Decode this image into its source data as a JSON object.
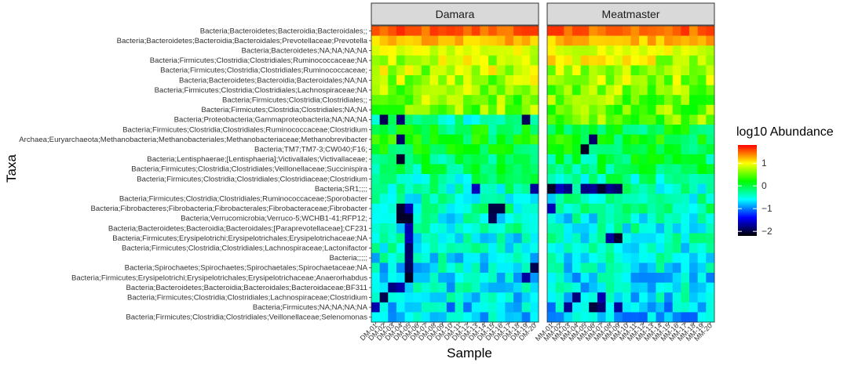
{
  "chart_data": {
    "type": "heatmap",
    "x_axis_label": "Sample",
    "y_axis_label": "Taxa",
    "legend": {
      "title": "log10 Abundance",
      "ticks": [
        1,
        0,
        -1,
        -2
      ],
      "tick_labels": [
        "1",
        "0",
        "−1",
        "−2"
      ],
      "range": [
        -2.2,
        1.8
      ],
      "colors": [
        "#000000",
        "#0000ff",
        "#00ffff",
        "#00ff00",
        "#ffff00",
        "#ff0000"
      ]
    },
    "facets": [
      {
        "label": "Damara",
        "samples": [
          "DM-01",
          "DM-02",
          "DM-03",
          "DM-04",
          "DM-05",
          "DM-06",
          "DM-07",
          "DM-08",
          "DM-09",
          "DM-10",
          "DM-11",
          "DM-12",
          "DM-13",
          "DM-14",
          "DM-15",
          "DM-16",
          "DM-17",
          "DM-18",
          "DM-19",
          "DM-20"
        ]
      },
      {
        "label": "Meatmaster",
        "samples": [
          "MM-01",
          "MM-02",
          "MM-03",
          "MM-04",
          "MM-05",
          "MM-06",
          "MM-07",
          "MM-08",
          "MM-09",
          "MM-10",
          "MM-11",
          "MM-12",
          "MM-13",
          "MM-14",
          "MM-15",
          "MM-16",
          "MM-17",
          "MM-18",
          "MM-19",
          "MM-20"
        ]
      }
    ],
    "taxa": [
      "Bacteria;Bacteroidetes;Bacteroidia;Bacteroidales;;",
      "Bacteria;Bacteroidetes;Bacteroidia;Bacteroidales;Prevotellaceae;Prevotella",
      "Bacteria;Bacteroidetes;NA;NA;NA;NA",
      "Bacteria;Firmicutes;Clostridia;Clostridiales;Ruminococcaceae;NA",
      "Bacteria;Firmicutes;Clostridia;Clostridiales;Ruminococcaceae;",
      "Bacteria;Bacteroidetes;Bacteroidia;Bacteroidales;NA;NA",
      "Bacteria;Firmicutes;Clostridia;Clostridiales;Lachnospiraceae;NA",
      "Bacteria;Firmicutes;Clostridia;Clostridiales;;",
      "Bacteria;Firmicutes;Clostridia;Clostridiales;NA;NA",
      "Bacteria;Proteobacteria;Gammaproteobacteria;NA;NA;NA",
      "Bacteria;Firmicutes;Clostridia;Clostridiales;Ruminococcaceae;Clostridium",
      "Archaea;Euryarchaeota;Methanobacteria;Methanobacteriales;Methanobacteriaceae;Methanobrevibacter",
      "Bacteria;TM7;TM7-3;CW040;F16;",
      "Bacteria;Lentisphaerae;[Lentisphaeria];Victivallales;Victivallaceae;",
      "Bacteria;Firmicutes;Clostridia;Clostridiales;Veillonellaceae;Succinispira",
      "Bacteria;Firmicutes;Clostridia;Clostridiales;Clostridiaceae;Clostridium",
      "Bacteria;SR1;;;;",
      "Bacteria;Firmicutes;Clostridia;Clostridiales;Ruminococcaceae;Sporobacter",
      "Bacteria;Fibrobacteres;Fibrobacteria;Fibrobacterales;Fibrobacteraceae;Fibrobacter",
      "Bacteria;Verrucomicrobia;Verruco-5;WCHB1-41;RFP12;",
      "Bacteria;Bacteroidetes;Bacteroidia;Bacteroidales;[Paraprevotellaceae];CF231",
      "Bacteria;Firmicutes;Erysipelotrichi;Erysipelotrichales;Erysipelotrichaceae;NA",
      "Bacteria;Firmicutes;Clostridia;Clostridiales;Lachnospiraceae;Lactonifactor",
      "Bacteria;;;;;",
      "Bacteria;Spirochaetes;Spirochaetes;Spirochaetales;Spirochaetaceae;NA",
      "Bacteria;Firmicutes;Erysipelotrichi;Erysipelotrichales;Erysipelotrichaceae;Anaerorhabdus",
      "Bacteria;Bacteroidetes;Bacteroidia;Bacteroidales;Bacteroidaceae;BF311",
      "Bacteria;Firmicutes;Clostridia;Clostridiales;Lachnospiraceae;Clostridium",
      "Bacteria;Firmicutes;NA;NA;NA;NA",
      "Bacteria;Firmicutes;Clostridia;Clostridiales;Veillonellaceae;Selenomonas"
    ],
    "row_base_values": [
      1.5,
      1.2,
      0.9,
      0.85,
      0.75,
      0.7,
      0.65,
      0.6,
      0.55,
      -0.3,
      0.0,
      0.1,
      0.05,
      -0.1,
      -0.15,
      -0.3,
      -0.35,
      -0.4,
      -0.3,
      -0.5,
      -0.45,
      -0.5,
      -0.5,
      -0.55,
      -0.6,
      -0.65,
      -0.6,
      -0.6,
      -0.75,
      -0.75
    ],
    "damara_low_cells": [
      [
        9,
        1
      ],
      [
        9,
        3
      ],
      [
        9,
        18
      ],
      [
        11,
        3
      ],
      [
        13,
        3
      ],
      [
        16,
        12
      ],
      [
        16,
        19
      ],
      [
        18,
        3
      ],
      [
        18,
        4
      ],
      [
        18,
        14
      ],
      [
        18,
        15
      ],
      [
        19,
        3
      ],
      [
        19,
        4
      ],
      [
        19,
        14
      ],
      [
        20,
        4
      ],
      [
        21,
        4
      ],
      [
        22,
        4
      ],
      [
        23,
        4
      ],
      [
        24,
        4
      ],
      [
        24,
        19
      ],
      [
        25,
        4
      ],
      [
        25,
        18
      ],
      [
        26,
        2
      ],
      [
        26,
        3
      ],
      [
        27,
        1
      ],
      [
        28,
        0
      ]
    ],
    "meatmaster_low_cells": [
      [
        16,
        0
      ],
      [
        16,
        1
      ],
      [
        16,
        2
      ],
      [
        16,
        4
      ],
      [
        16,
        5
      ],
      [
        16,
        6
      ],
      [
        16,
        7
      ],
      [
        16,
        8
      ],
      [
        18,
        0
      ],
      [
        21,
        7
      ],
      [
        21,
        8
      ],
      [
        27,
        3
      ],
      [
        27,
        6
      ],
      [
        28,
        2
      ],
      [
        28,
        5
      ],
      [
        28,
        6
      ],
      [
        28,
        8
      ],
      [
        11,
        5
      ],
      [
        12,
        4
      ]
    ]
  }
}
